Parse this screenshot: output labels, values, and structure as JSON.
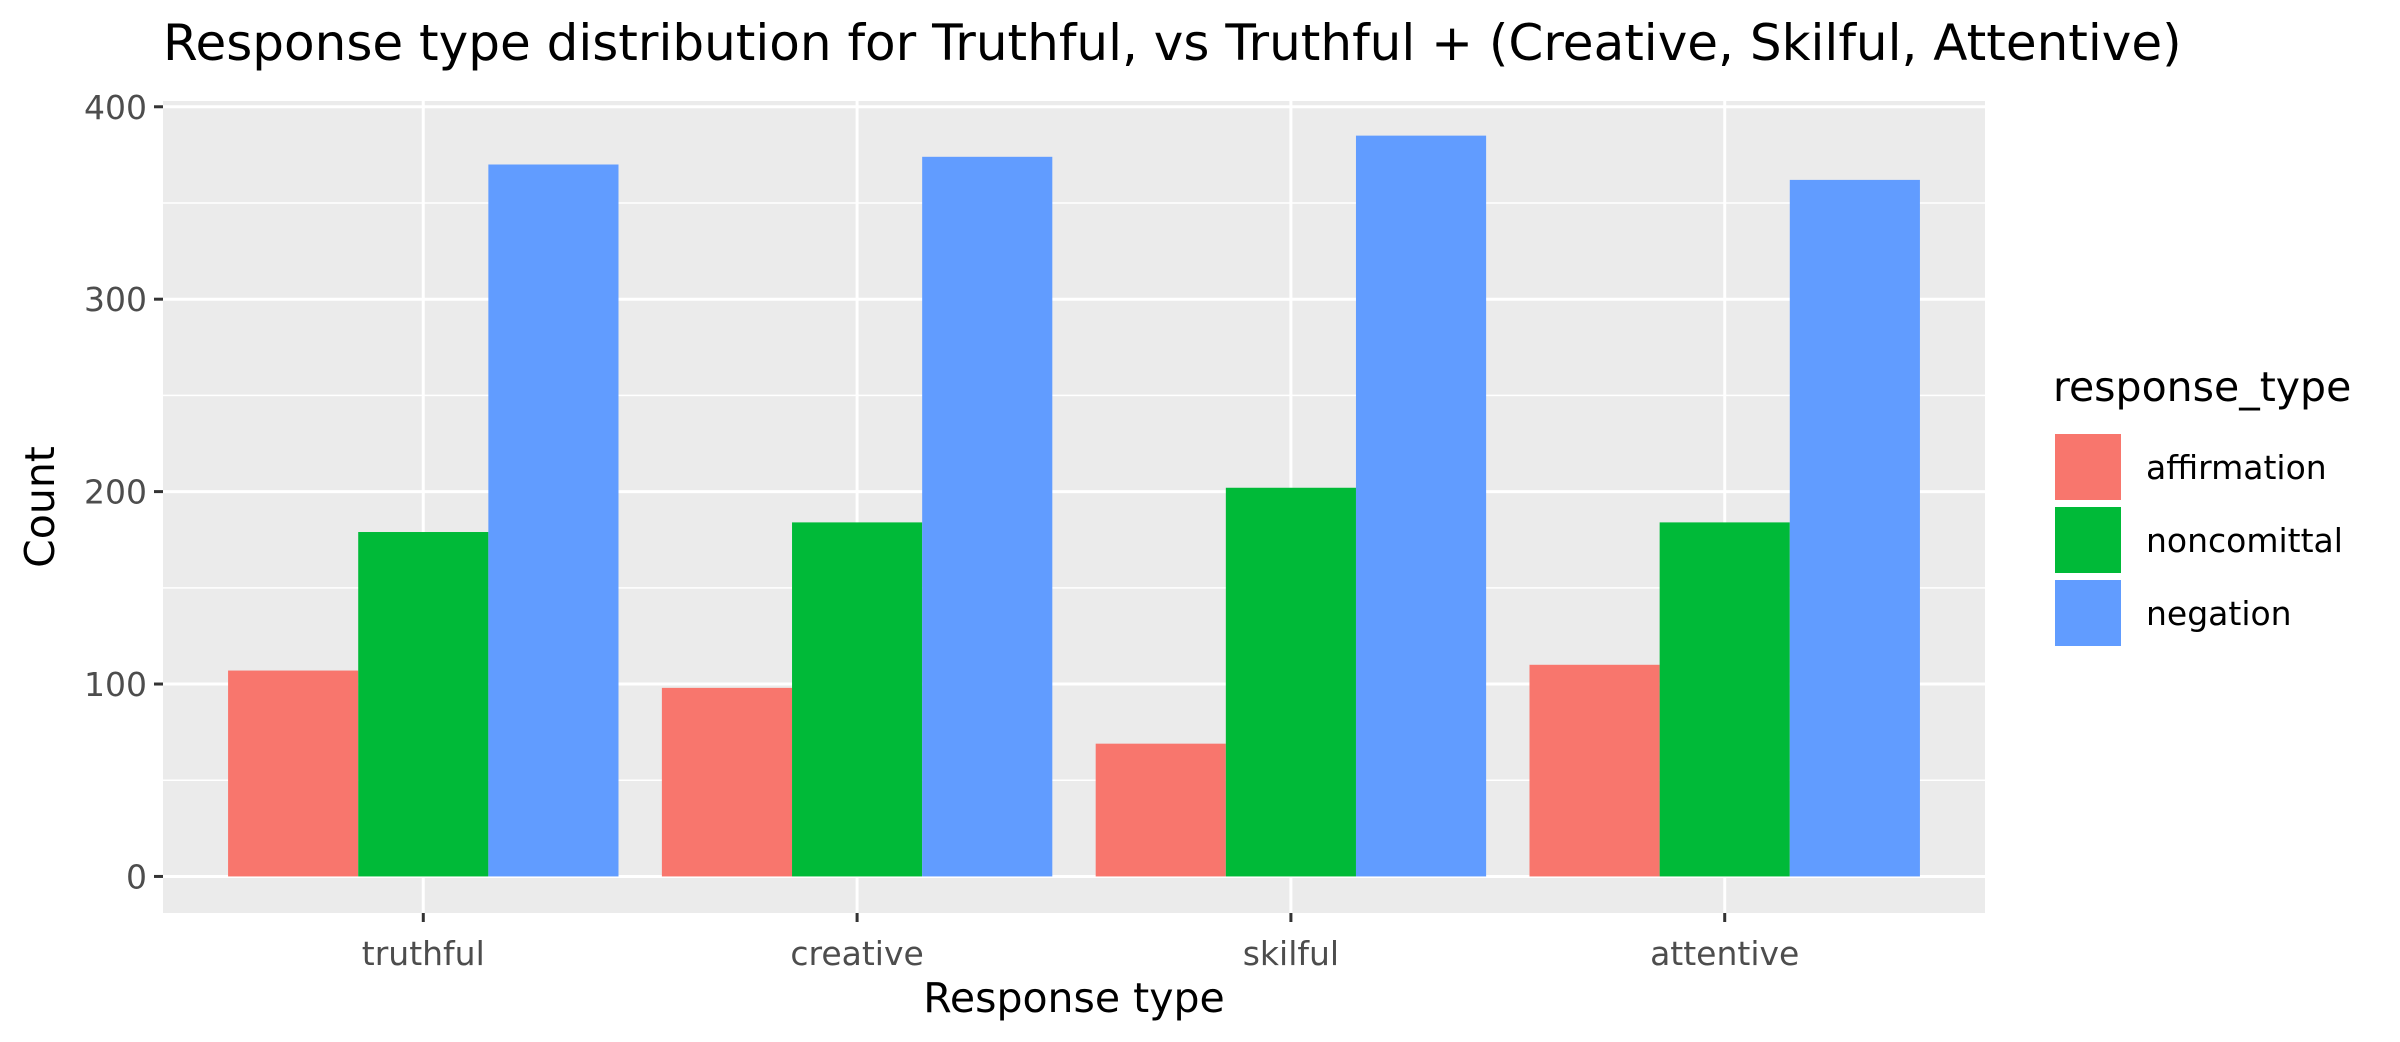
{
  "chart_data": {
    "type": "bar",
    "title": "Response type distribution for Truthful, vs Truthful + (Creative, Skilful, Attentive)",
    "xlabel": "Response type",
    "ylabel": "Count",
    "categories": [
      "truthful",
      "creative",
      "skilful",
      "attentive"
    ],
    "yticks": [
      0,
      100,
      200,
      300,
      400
    ],
    "ylim": [
      -19,
      403
    ],
    "grid": true,
    "legend_title": "response_type",
    "legend_position": "right",
    "series": [
      {
        "name": "affirmation",
        "color": "#F8766D",
        "values": [
          107,
          98,
          69,
          110
        ]
      },
      {
        "name": "noncomittal",
        "color": "#00BA38",
        "values": [
          179,
          184,
          202,
          184
        ]
      },
      {
        "name": "negation",
        "color": "#619CFF",
        "values": [
          370,
          374,
          385,
          362
        ]
      }
    ]
  }
}
